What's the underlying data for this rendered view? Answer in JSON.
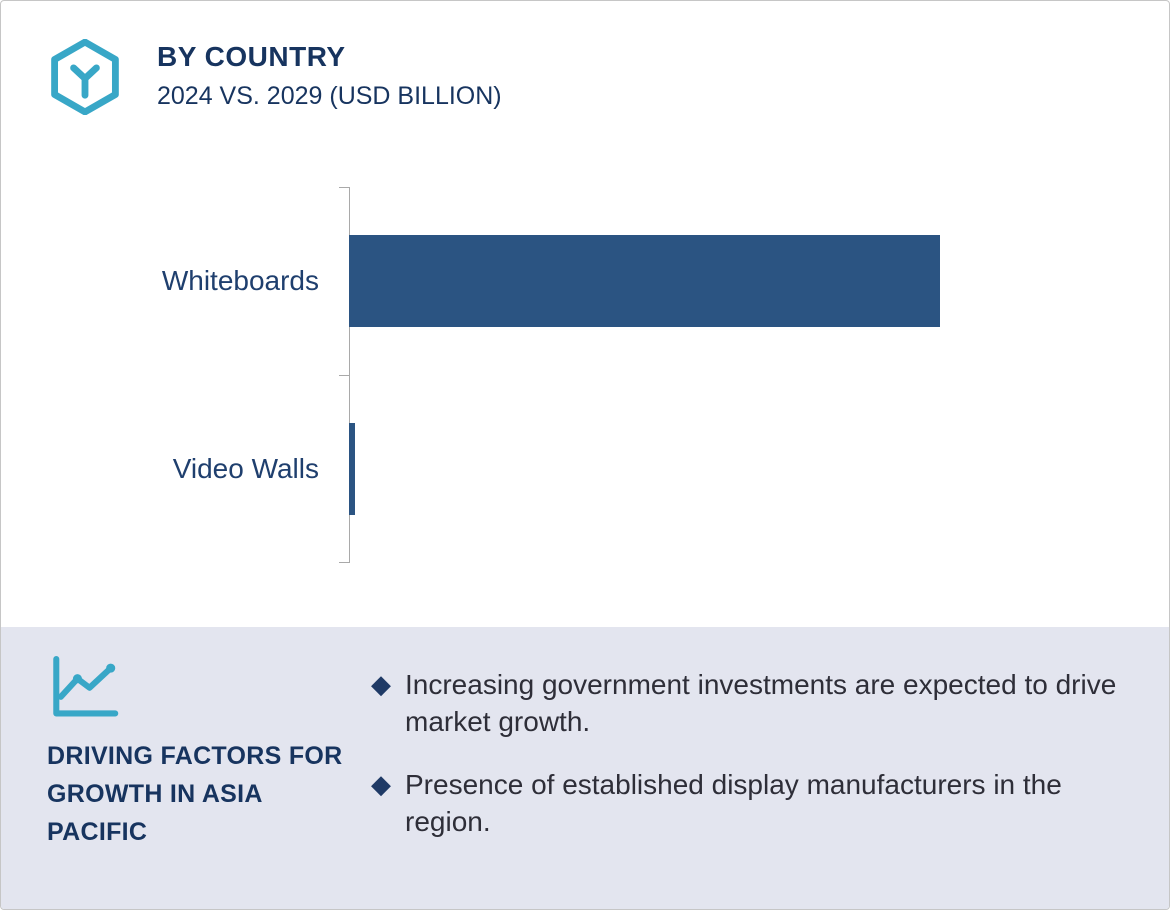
{
  "header": {
    "title": "BY COUNTRY",
    "subtitle": "2024 VS. 2029 (USD BILLION)",
    "icon": "hexagon-y-icon"
  },
  "chart_data": {
    "type": "bar",
    "orientation": "horizontal",
    "title": "BY COUNTRY",
    "subtitle": "2024 VS. 2029 (USD BILLION)",
    "categories": [
      "Whiteboards",
      "Video Walls"
    ],
    "values": [
      6.0,
      0.06
    ],
    "xlabel": "",
    "ylabel": "",
    "xlim": [
      0,
      8
    ],
    "units": "USD Billion",
    "grid": false,
    "legend": false,
    "axis_tick_labels": []
  },
  "footer": {
    "icon": "line-chart-icon",
    "heading": "DRIVING FACTORS FOR GROWTH IN ASIA PACIFIC",
    "bullets": [
      "Increasing government investments are expected to drive market growth.",
      "Presence of established display manufacturers in the region."
    ]
  },
  "colors": {
    "bar": "#2b5482",
    "navy": "#17345f",
    "teal": "#38a7c7",
    "footer_bg": "#e3e5ef",
    "text_dark": "#2e2e38",
    "axis": "#a9a9a9",
    "bullet_diamond": "#1f3a66"
  }
}
